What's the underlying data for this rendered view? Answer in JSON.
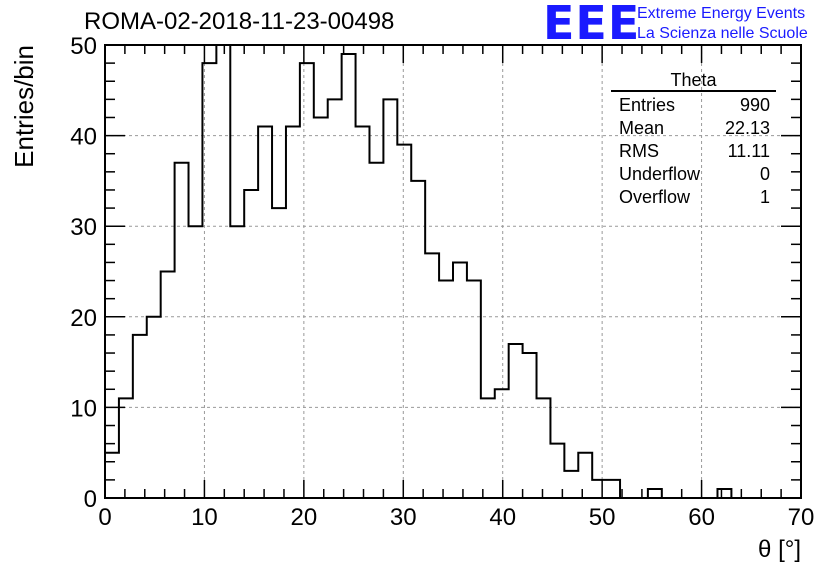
{
  "header": {
    "run_id": "ROMA-02-2018-11-23-00498"
  },
  "logo": {
    "mark": "EEE",
    "line1": "Extreme Energy Events",
    "line2": "La Scienza nelle Scuole",
    "color": "#1a1aff"
  },
  "stats": {
    "title": "Theta",
    "rows": [
      {
        "label": "Entries",
        "value": "990"
      },
      {
        "label": "Mean",
        "value": "22.13"
      },
      {
        "label": "RMS",
        "value": "11.11"
      },
      {
        "label": "Underflow",
        "value": "0"
      },
      {
        "label": "Overflow",
        "value": "1"
      }
    ]
  },
  "chart_data": {
    "type": "bar",
    "title": "ROMA-02-2018-11-23-00498",
    "xlabel": "θ [°]",
    "ylabel": "Entries/bin",
    "xlim": [
      0,
      70
    ],
    "ylim": [
      0,
      50
    ],
    "grid": true,
    "bin_width": 1.4,
    "x_ticks": [
      0,
      10,
      20,
      30,
      40,
      50,
      60,
      70
    ],
    "y_ticks": [
      0,
      10,
      20,
      30,
      40,
      50
    ],
    "values": [
      5,
      11,
      18,
      20,
      25,
      37,
      30,
      48,
      50,
      30,
      34,
      41,
      32,
      41,
      48,
      42,
      44,
      49,
      41,
      37,
      44,
      39,
      35,
      27,
      24,
      26,
      24,
      11,
      12,
      17,
      16,
      11,
      6,
      3,
      5,
      2,
      2,
      0,
      0,
      1,
      0,
      0,
      0,
      0,
      1,
      0,
      0,
      0,
      0,
      0
    ],
    "line_color": "#000000"
  }
}
